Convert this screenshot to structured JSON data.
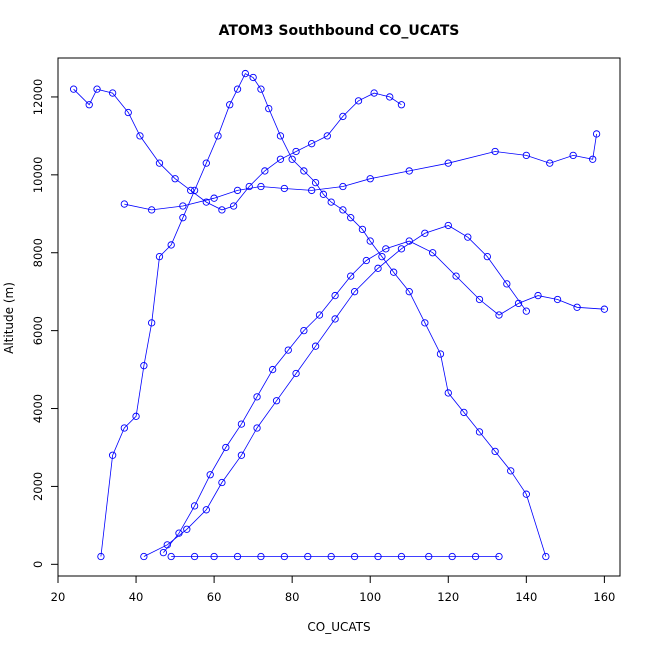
{
  "chart_data": {
    "type": "line",
    "title": "ATOM3 Southbound CO_UCATS",
    "xlabel": "CO_UCATS",
    "ylabel": "Altitude (m)",
    "xlim": [
      20,
      164
    ],
    "ylim": [
      -300,
      13000
    ],
    "xticks": [
      20,
      40,
      60,
      80,
      100,
      120,
      140,
      160
    ],
    "yticks": [
      0,
      2000,
      4000,
      6000,
      8000,
      10000,
      12000
    ],
    "grid": false,
    "legend": "none",
    "markers": "open-circle",
    "series": [
      {
        "color": "#0000ff",
        "x": [
          31,
          34,
          37,
          40,
          42,
          44,
          46,
          49,
          52,
          55,
          58,
          61,
          64,
          66,
          68,
          70,
          72,
          74,
          77,
          80,
          83,
          86,
          88,
          90,
          93,
          95,
          98,
          100,
          103,
          106,
          110,
          114,
          118,
          120,
          124,
          128,
          132,
          136,
          140,
          145
        ],
        "y": [
          200,
          2800,
          3500,
          3800,
          5100,
          6200,
          7900,
          8200,
          8900,
          9600,
          10300,
          11000,
          11800,
          12200,
          12600,
          12500,
          12200,
          11700,
          11000,
          10400,
          10100,
          9800,
          9500,
          9300,
          9100,
          8900,
          8600,
          8300,
          7900,
          7500,
          7000,
          6200,
          5400,
          4400,
          3900,
          3400,
          2900,
          2400,
          1800,
          200
        ]
      },
      {
        "color": "#0000ff",
        "x": [
          24,
          28,
          30,
          34,
          38,
          41,
          46,
          50,
          54,
          58,
          62,
          65,
          69,
          73,
          77,
          81,
          85,
          89,
          93,
          97,
          101,
          105,
          108
        ],
        "y": [
          12200,
          11800,
          12200,
          12100,
          11600,
          11000,
          10300,
          9900,
          9600,
          9300,
          9100,
          9200,
          9700,
          10100,
          10400,
          10600,
          10800,
          11000,
          11500,
          11900,
          12100,
          12000,
          11800
        ]
      },
      {
        "color": "#0000ff",
        "x": [
          37,
          44,
          52,
          60,
          66,
          72,
          78,
          85,
          93,
          100,
          110,
          120,
          132,
          140,
          146,
          152,
          157,
          158
        ],
        "y": [
          9250,
          9100,
          9200,
          9400,
          9600,
          9700,
          9650,
          9600,
          9700,
          9900,
          10100,
          10300,
          10600,
          10500,
          10300,
          10500,
          10400,
          11050
        ]
      },
      {
        "color": "#0000ff",
        "x": [
          42,
          48,
          53,
          58,
          62,
          67,
          71,
          76,
          81,
          86,
          91,
          96,
          102,
          108,
          114,
          120,
          125,
          130,
          135,
          140
        ],
        "y": [
          200,
          500,
          900,
          1400,
          2100,
          2800,
          3500,
          4200,
          4900,
          5600,
          6300,
          7000,
          7600,
          8100,
          8500,
          8700,
          8400,
          7900,
          7200,
          6500
        ]
      },
      {
        "color": "#0000ff",
        "x": [
          47,
          51,
          55,
          59,
          63,
          67,
          71,
          75,
          79,
          83,
          87,
          91,
          95,
          99,
          104,
          110,
          116,
          122,
          128,
          133,
          138,
          143,
          148,
          153,
          160
        ],
        "y": [
          300,
          800,
          1500,
          2300,
          3000,
          3600,
          4300,
          5000,
          5500,
          6000,
          6400,
          6900,
          7400,
          7800,
          8100,
          8300,
          8000,
          7400,
          6800,
          6400,
          6700,
          6900,
          6800,
          6600,
          6550
        ]
      },
      {
        "color": "#0000ff",
        "x": [
          49,
          55,
          60,
          66,
          72,
          78,
          84,
          90,
          96,
          102,
          108,
          115,
          121,
          127,
          133
        ],
        "y": [
          200,
          200,
          200,
          200,
          200,
          200,
          200,
          200,
          200,
          200,
          200,
          200,
          200,
          200,
          200
        ]
      }
    ]
  }
}
